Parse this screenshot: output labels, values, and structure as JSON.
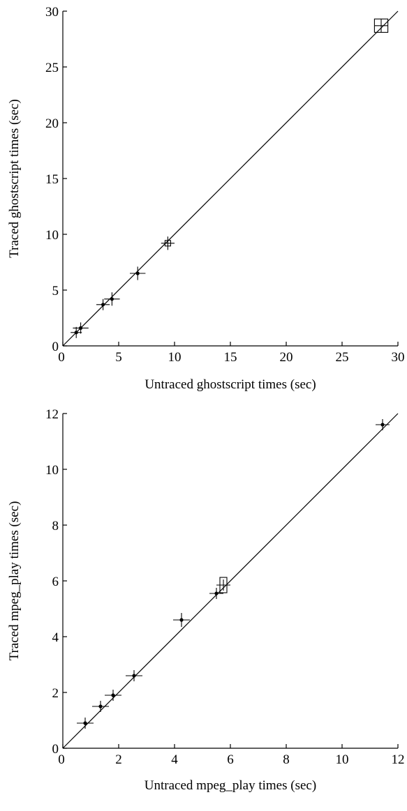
{
  "chart_data": [
    {
      "type": "scatter",
      "title": "",
      "xlabel": "Untraced ghostscript times (sec)",
      "ylabel": "Traced ghostscript times (sec)",
      "xlim": [
        0,
        30
      ],
      "ylim": [
        0,
        30
      ],
      "x_ticks": [
        0,
        5,
        10,
        15,
        20,
        25,
        30
      ],
      "y_ticks": [
        0,
        5,
        10,
        15,
        20,
        25,
        30
      ],
      "reference_line": "y = x",
      "grid": false,
      "points": [
        {
          "x": 1.2,
          "y": 1.2,
          "xerr": 0.5,
          "yerr": 0.5,
          "marker": "dot"
        },
        {
          "x": 1.6,
          "y": 1.6,
          "xerr": 0.7,
          "yerr": 0.5,
          "marker": "dot"
        },
        {
          "x": 3.6,
          "y": 3.7,
          "xerr": 0.6,
          "yerr": 0.5,
          "marker": "dot"
        },
        {
          "x": 4.4,
          "y": 4.2,
          "xerr": 0.7,
          "yerr": 0.6,
          "marker": "dot"
        },
        {
          "x": 6.7,
          "y": 6.5,
          "xerr": 0.7,
          "yerr": 0.6,
          "marker": "dot"
        },
        {
          "x": 9.4,
          "y": 9.2,
          "xerr": 0.6,
          "yerr": 0.6,
          "marker": "box",
          "bw": 0.5,
          "bh": 0.5
        },
        {
          "x": 28.5,
          "y": 28.7,
          "xerr": 0.6,
          "yerr": 0.6,
          "marker": "box",
          "bw": 1.2,
          "bh": 1.2
        }
      ]
    },
    {
      "type": "scatter",
      "title": "",
      "xlabel": "Untraced mpeg_play times (sec)",
      "ylabel": "Traced mpeg_play times (sec)",
      "xlim": [
        0,
        12
      ],
      "ylim": [
        0,
        12
      ],
      "x_ticks": [
        0,
        2,
        4,
        6,
        8,
        10,
        12
      ],
      "y_ticks": [
        0,
        2,
        4,
        6,
        8,
        10,
        12
      ],
      "reference_line": "y = x",
      "grid": false,
      "points": [
        {
          "x": 0.8,
          "y": 0.9,
          "xerr": 0.3,
          "yerr": 0.2,
          "marker": "dot"
        },
        {
          "x": 1.35,
          "y": 1.5,
          "xerr": 0.3,
          "yerr": 0.2,
          "marker": "dot"
        },
        {
          "x": 1.8,
          "y": 1.9,
          "xerr": 0.3,
          "yerr": 0.2,
          "marker": "dot"
        },
        {
          "x": 2.55,
          "y": 2.6,
          "xerr": 0.3,
          "yerr": 0.2,
          "marker": "dot"
        },
        {
          "x": 4.25,
          "y": 4.6,
          "xerr": 0.3,
          "yerr": 0.25,
          "marker": "dot"
        },
        {
          "x": 5.5,
          "y": 5.55,
          "xerr": 0.25,
          "yerr": 0.2,
          "marker": "dot"
        },
        {
          "x": 5.75,
          "y": 5.85,
          "xerr": 0.25,
          "yerr": 0.2,
          "marker": "box",
          "bw": 0.25,
          "bh": 0.55
        },
        {
          "x": 11.45,
          "y": 11.6,
          "xerr": 0.25,
          "yerr": 0.2,
          "marker": "dot"
        }
      ]
    }
  ]
}
